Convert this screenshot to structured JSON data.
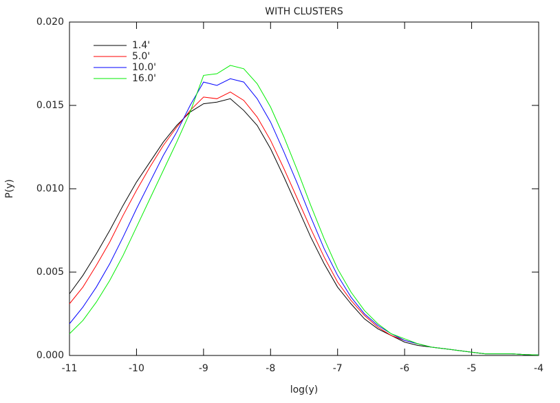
{
  "chart_data": {
    "type": "line",
    "title": "WITH CLUSTERS",
    "x_label": "log(y)",
    "y_label": "P(y)",
    "x": [
      -11,
      -10.8,
      -10.6,
      -10.4,
      -10.2,
      -10,
      -9.8,
      -9.6,
      -9.4,
      -9.2,
      -9,
      -8.8,
      -8.6,
      -8.4,
      -8.2,
      -8,
      -7.8,
      -7.6,
      -7.4,
      -7.2,
      -7,
      -6.8,
      -6.6,
      -6.4,
      -6.2,
      -6,
      -5.8,
      -5.6,
      -5.4,
      -5.2,
      -5,
      -4.8,
      -4.6,
      -4.4,
      -4.2,
      -4
    ],
    "series": [
      {
        "name": "1.4'",
        "color": "#000000",
        "values": [
          0.0037,
          0.0048,
          0.0061,
          0.0075,
          0.009,
          0.0104,
          0.0116,
          0.0128,
          0.0138,
          0.0146,
          0.0151,
          0.0152,
          0.0154,
          0.0147,
          0.0138,
          0.0124,
          0.0107,
          0.0089,
          0.0071,
          0.0055,
          0.0041,
          0.0031,
          0.0022,
          0.0016,
          0.0012,
          0.0008,
          0.0006,
          0.0005,
          0.0004,
          0.0003,
          0.0002,
          0.0001,
          0.0001,
          0.0001,
          5e-05,
          3e-05
        ]
      },
      {
        "name": "5.0'",
        "color": "#ff0000",
        "values": [
          0.0031,
          0.0041,
          0.0054,
          0.0068,
          0.0084,
          0.0099,
          0.0113,
          0.0126,
          0.0137,
          0.0147,
          0.0155,
          0.0154,
          0.0158,
          0.0153,
          0.0143,
          0.0129,
          0.0112,
          0.0094,
          0.0076,
          0.0059,
          0.0044,
          0.0033,
          0.0024,
          0.0017,
          0.0012,
          0.0009,
          0.0007,
          0.0005,
          0.0004,
          0.0003,
          0.0002,
          0.0001,
          0.0001,
          0.0001,
          5e-05,
          3e-05
        ]
      },
      {
        "name": "10.0'",
        "color": "#0000ff",
        "values": [
          0.0019,
          0.0029,
          0.0041,
          0.0055,
          0.0071,
          0.0088,
          0.0104,
          0.012,
          0.0134,
          0.015,
          0.0164,
          0.0162,
          0.0166,
          0.0164,
          0.0154,
          0.014,
          0.0122,
          0.0103,
          0.0083,
          0.0064,
          0.0048,
          0.0035,
          0.0025,
          0.0018,
          0.0013,
          0.0009,
          0.0007,
          0.0005,
          0.0004,
          0.0003,
          0.0002,
          0.0001,
          0.0001,
          0.0001,
          5e-05,
          3e-05
        ]
      },
      {
        "name": "16.0'",
        "color": "#00ee00",
        "values": [
          0.0013,
          0.0021,
          0.0032,
          0.0045,
          0.006,
          0.0077,
          0.0094,
          0.0111,
          0.0128,
          0.0146,
          0.0168,
          0.0169,
          0.0174,
          0.0172,
          0.0163,
          0.0149,
          0.0131,
          0.0111,
          0.009,
          0.007,
          0.0052,
          0.0038,
          0.0027,
          0.0019,
          0.0013,
          0.001,
          0.0007,
          0.0005,
          0.0004,
          0.0003,
          0.0002,
          0.0001,
          0.0001,
          0.0001,
          5e-05,
          3e-05
        ]
      }
    ],
    "xlim": [
      -11,
      -4
    ],
    "xticks": [
      -11,
      -10,
      -9,
      -8,
      -7,
      -6,
      -5,
      -4
    ],
    "ylim": [
      0,
      0.02
    ],
    "yticks": [
      {
        "value": 0,
        "label": "0.000"
      },
      0.005,
      {
        "value": 0.01,
        "label": "0.010"
      },
      0.015,
      {
        "value": 0.02,
        "label": "0.020"
      }
    ],
    "legend": "upper-left"
  }
}
